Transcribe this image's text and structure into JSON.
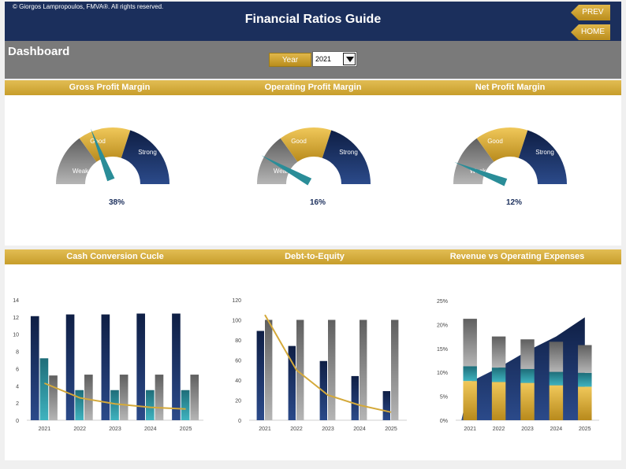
{
  "header": {
    "copyright": "© Giorgos Lampropoulos, FMVA®. All rights reserved.",
    "title": "Financial Ratios Guide",
    "prev_label": "PREV",
    "home_label": "HOME"
  },
  "dashboard": {
    "title": "Dashboard",
    "year_label": "Year",
    "year_value": "2021"
  },
  "gauges": [
    {
      "title": "Gross Profit Margin",
      "value_label": "38%",
      "value": 0.38,
      "zones": [
        "Weak",
        "Good",
        "Strong"
      ]
    },
    {
      "title": "Operating Profit Margin",
      "value_label": "16%",
      "value": 0.16,
      "zones": [
        "Weak",
        "Good",
        "Strong"
      ]
    },
    {
      "title": "Net Profit Margin",
      "value_label": "12%",
      "value": 0.12,
      "zones": [
        "Weak",
        "Good",
        "Strong"
      ]
    }
  ],
  "colors": {
    "navy": "#1b2f5c",
    "gold": "#d4a93a",
    "teal": "#2a8d98",
    "gray": "#8a8a8a"
  },
  "chart_data": [
    {
      "type": "bar",
      "title": "Cash Conversion Cucle",
      "categories": [
        "2021",
        "2022",
        "2023",
        "2024",
        "2025"
      ],
      "ylim": [
        0,
        14
      ],
      "yticks": [
        "0",
        "2",
        "4",
        "6",
        "8",
        "10",
        "12",
        "14"
      ],
      "series": [
        {
          "values": [
            12.1,
            12.3,
            12.3,
            12.4,
            12.4
          ],
          "color": "navy"
        },
        {
          "values": [
            7.2,
            3.5,
            3.5,
            3.5,
            3.5
          ],
          "color": "teal"
        },
        {
          "values": [
            5.2,
            5.3,
            5.3,
            5.3,
            5.3
          ],
          "color": "gray"
        }
      ],
      "line": {
        "values": [
          4.3,
          2.6,
          1.9,
          1.5,
          1.3
        ],
        "color": "gold"
      }
    },
    {
      "type": "bar",
      "title": "Debt-to-Equity",
      "categories": [
        "2021",
        "2022",
        "2023",
        "2024",
        "2025"
      ],
      "ylim": [
        0,
        120
      ],
      "yticks": [
        "0",
        "20",
        "40",
        "60",
        "80",
        "100",
        "120"
      ],
      "series": [
        {
          "values": [
            89,
            74,
            59,
            44,
            29
          ],
          "color": "navy"
        },
        {
          "values": [
            100,
            100,
            100,
            100,
            100
          ],
          "color": "gray"
        }
      ],
      "line": {
        "values": [
          105,
          50,
          25,
          15,
          8
        ],
        "color": "gold"
      }
    },
    {
      "type": "bar",
      "title": "Revenue vs Operating Expenses",
      "categories": [
        "2021",
        "2022",
        "2023",
        "2024",
        "2025"
      ],
      "ylim": [
        0,
        25
      ],
      "yticks": [
        "0%",
        "5%",
        "10%",
        "15%",
        "20%",
        "25%"
      ],
      "area": {
        "values": [
          8,
          11,
          14.5,
          17.5,
          21.5
        ],
        "color": "navy"
      },
      "stacked": [
        {
          "values": [
            8.2,
            8,
            7.8,
            7.3,
            7
          ],
          "color": "gold"
        },
        {
          "values": [
            3.1,
            3,
            2.9,
            2.8,
            2.9
          ],
          "color": "teal"
        },
        {
          "values": [
            9.9,
            6.5,
            6.2,
            6.3,
            5.8
          ],
          "color": "gray"
        }
      ]
    }
  ]
}
